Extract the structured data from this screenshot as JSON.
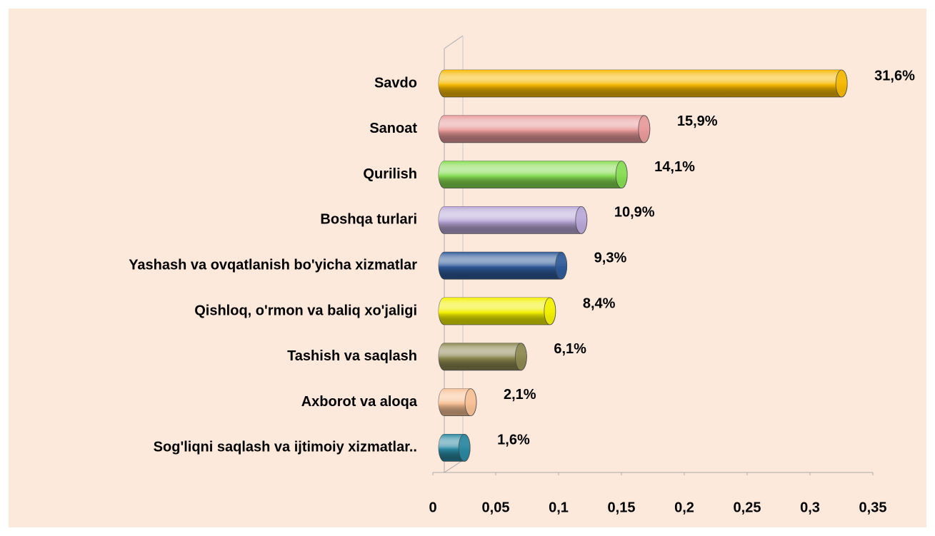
{
  "chart_data": {
    "type": "bar",
    "orientation": "horizontal",
    "categories": [
      "Savdo",
      "Sanoat",
      "Qurilish",
      "Boshqa turlari",
      "Yashash va ovqatlanish bo'yicha xizmatlar",
      "Qishloq, o'rmon va baliq xo'jaligi",
      "Tashish va saqlash",
      "Axborot va aloqa",
      "Sog'liqni saqlash va ijtimoiy xizmatlar.."
    ],
    "values": [
      0.316,
      0.159,
      0.141,
      0.109,
      0.093,
      0.084,
      0.061,
      0.021,
      0.016
    ],
    "value_labels": [
      "31,6%",
      "15,9%",
      "14,1%",
      "10,9%",
      "9,3%",
      "8,4%",
      "6,1%",
      "2,1%",
      "1,6%"
    ],
    "colors": [
      "#f5b800",
      "#e89a9a",
      "#86dc52",
      "#b8a8d8",
      "#2f5a98",
      "#f2f000",
      "#8c8850",
      "#f8c095",
      "#2a88a0"
    ],
    "xlim": [
      0,
      0.35
    ],
    "xticks": [
      0,
      {
        "value": 0.05,
        "label": "0,05"
      },
      {
        "value": 0.1,
        "label": "0,1"
      },
      {
        "value": 0.15,
        "label": "0,15"
      },
      {
        "value": 0.2,
        "label": "0,2"
      },
      {
        "value": 0.25,
        "label": "0,25"
      },
      {
        "value": 0.3,
        "label": "0,3"
      },
      {
        "value": 0.35,
        "label": "0,35"
      }
    ],
    "grid": false
  }
}
